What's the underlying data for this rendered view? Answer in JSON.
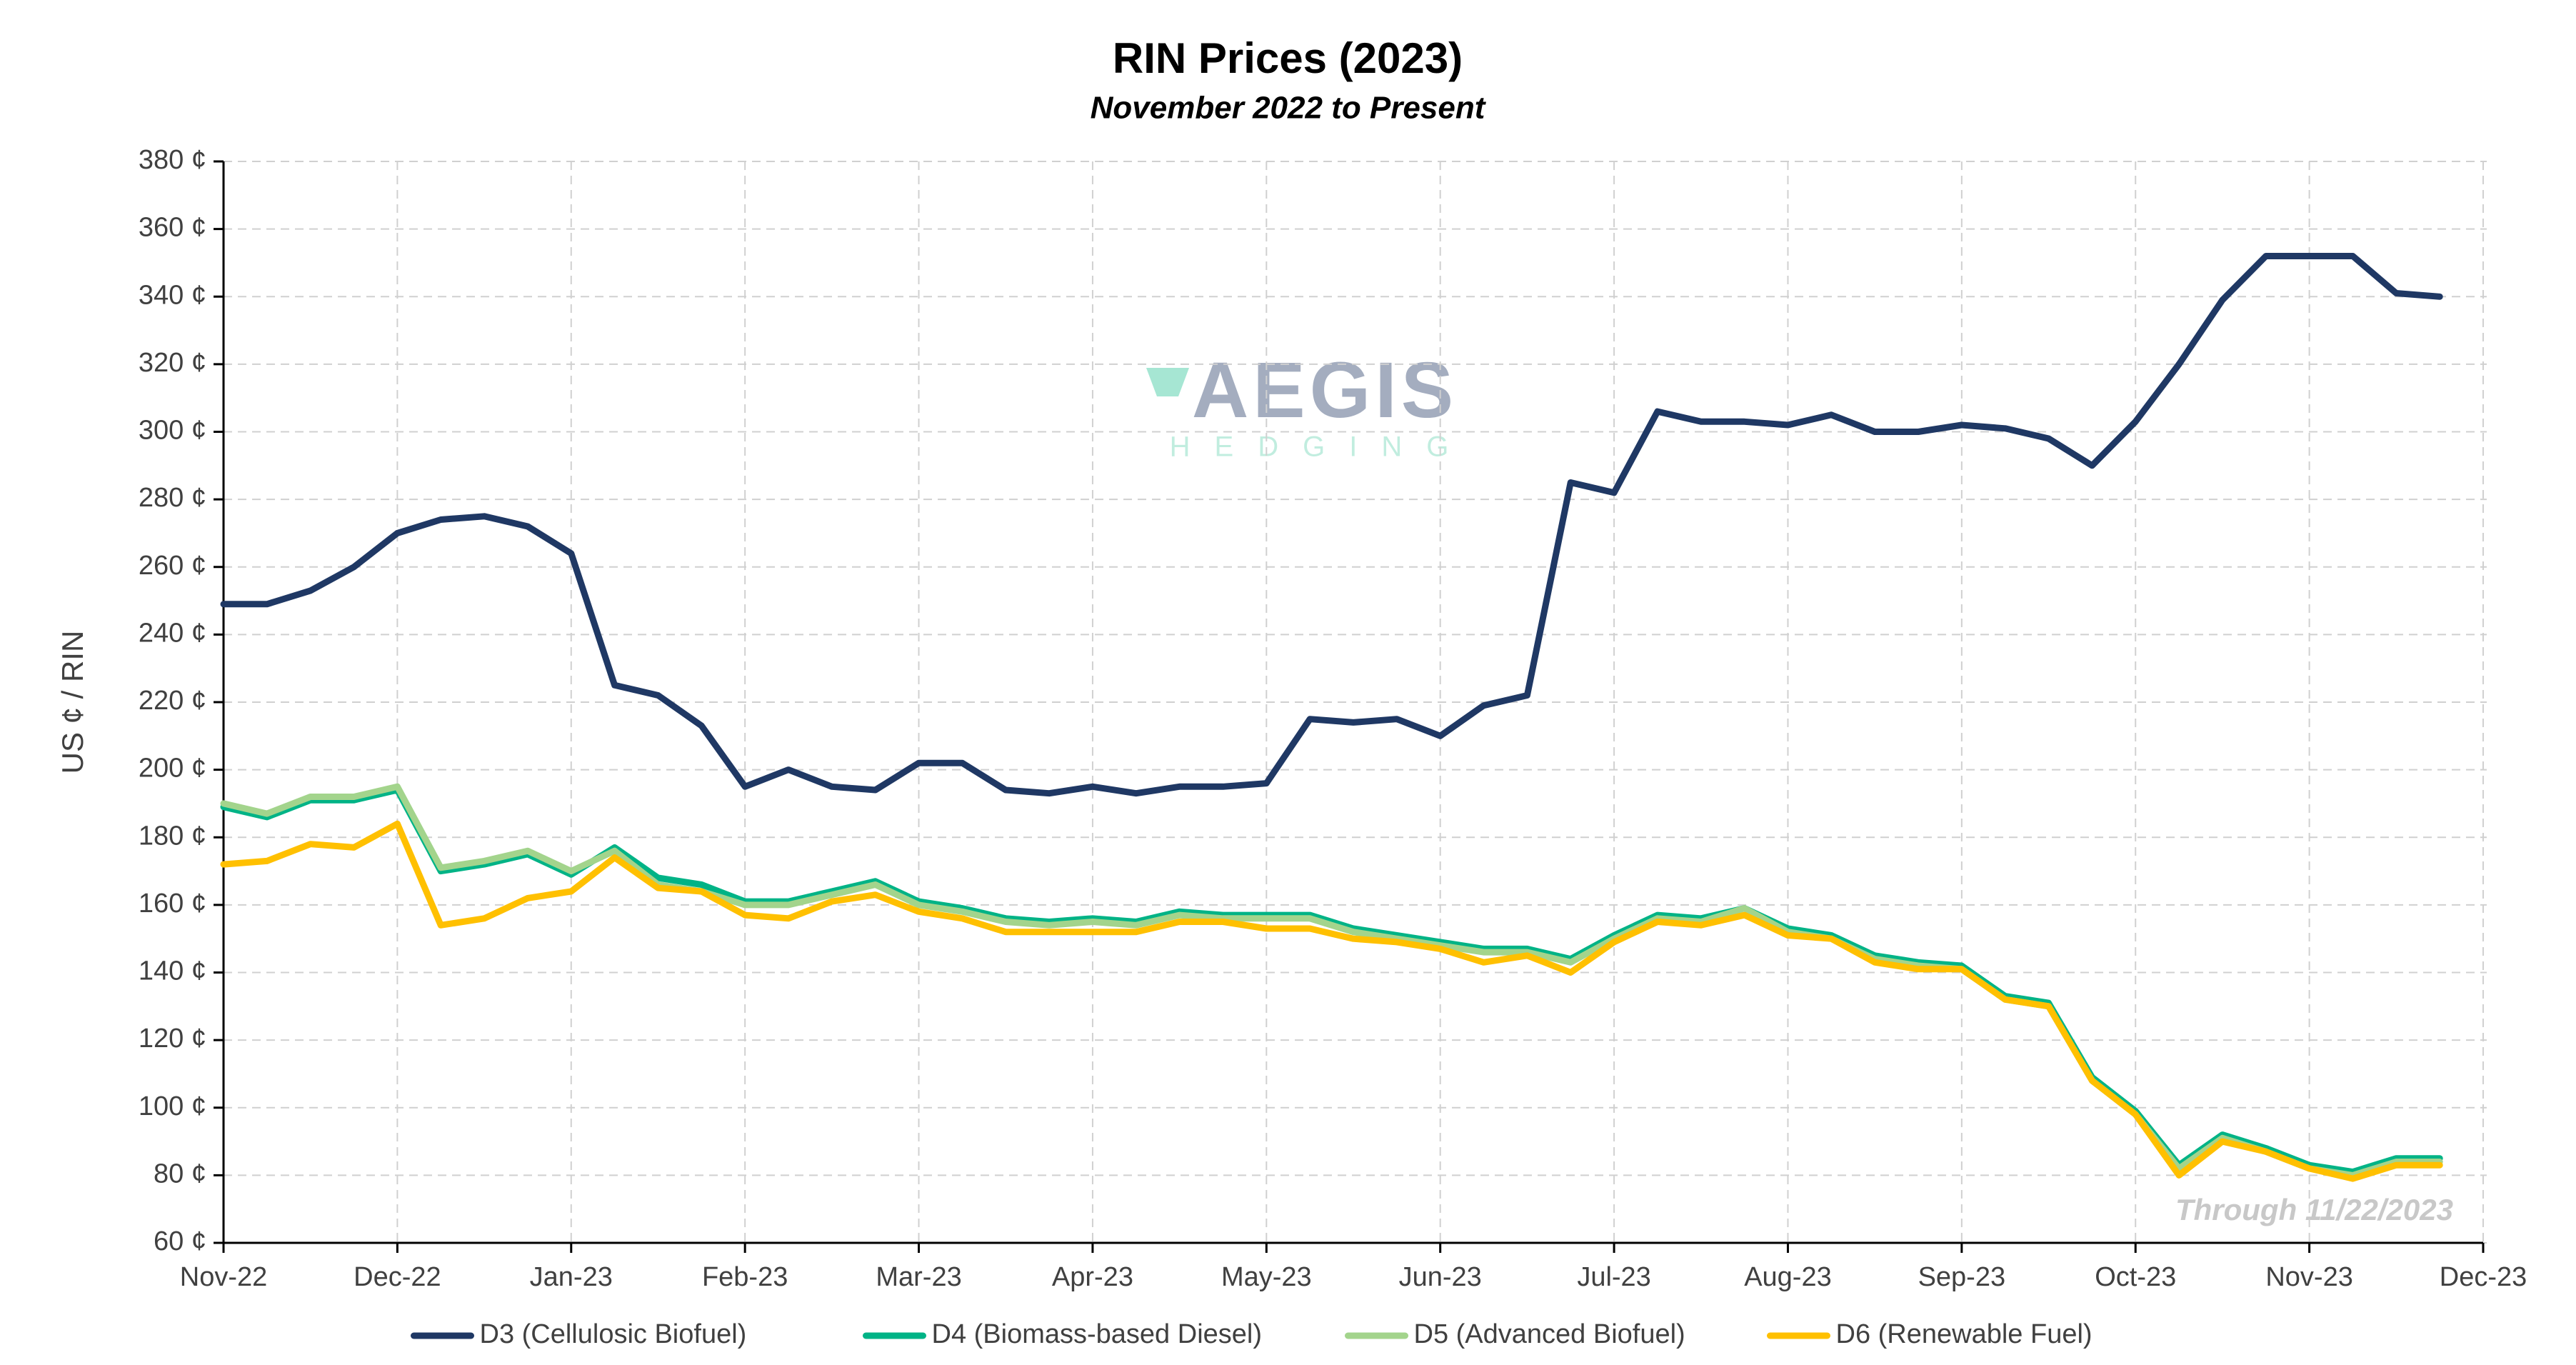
{
  "chart_data": {
    "type": "line",
    "title": "RIN Prices (2023)",
    "subtitle": "November 2022 to Present",
    "y_label": "US ¢ / RIN",
    "annotation": "Through 11/22/2023",
    "logo": {
      "name": "AEGIS",
      "tagline": "HEDGING"
    },
    "categories": [
      "Nov-22",
      null,
      null,
      null,
      "Dec-22",
      null,
      null,
      null,
      "Jan-23",
      null,
      null,
      null,
      "Feb-23",
      null,
      null,
      null,
      "Mar-23",
      null,
      null,
      null,
      "Apr-23",
      null,
      null,
      null,
      "May-23",
      null,
      null,
      null,
      "Jun-23",
      null,
      null,
      null,
      "Jul-23",
      null,
      null,
      null,
      "Aug-23",
      null,
      null,
      null,
      "Sep-23",
      null,
      null,
      null,
      "Oct-23",
      null,
      null,
      null,
      "Nov-23",
      null,
      null,
      null,
      "Dec-23"
    ],
    "series": [
      {
        "name": "D3 (Cellulosic Biofuel)",
        "color": "#1f3864",
        "values": [
          249,
          249,
          253,
          260,
          270,
          274,
          275,
          272,
          264,
          225,
          222,
          213,
          195,
          200,
          195,
          194,
          202,
          202,
          194,
          193,
          195,
          193,
          195,
          195,
          196,
          215,
          214,
          215,
          210,
          219,
          222,
          285,
          282,
          306,
          303,
          303,
          302,
          305,
          300,
          300,
          302,
          301,
          298,
          290,
          303,
          320,
          339,
          352,
          352,
          352,
          341,
          340,
          null
        ]
      },
      {
        "name": "D4 (Biomass-based Diesel)",
        "color": "#00b386",
        "values": [
          189,
          186,
          191,
          191,
          194,
          170,
          172,
          175,
          169,
          177,
          168,
          166,
          161,
          161,
          164,
          167,
          161,
          159,
          156,
          155,
          156,
          155,
          158,
          157,
          157,
          157,
          153,
          151,
          149,
          147,
          147,
          144,
          151,
          157,
          156,
          159,
          153,
          151,
          145,
          143,
          142,
          133,
          131,
          109,
          99,
          83,
          92,
          88,
          83,
          81,
          85,
          85,
          null
        ]
      },
      {
        "name": "D5 (Advanced Biofuel)",
        "color": "#a3d48c",
        "values": [
          190,
          187,
          192,
          192,
          195,
          171,
          173,
          176,
          170,
          176,
          166,
          164,
          160,
          160,
          163,
          166,
          160,
          158,
          155,
          154,
          155,
          154,
          157,
          156,
          156,
          156,
          152,
          150,
          148,
          146,
          146,
          143,
          150,
          156,
          155,
          159,
          152,
          150,
          144,
          142,
          141,
          132,
          130,
          108,
          98,
          82,
          91,
          87,
          82,
          80,
          84,
          84,
          null
        ]
      },
      {
        "name": "D6 (Renewable Fuel)",
        "color": "#ffc000",
        "values": [
          172,
          173,
          178,
          177,
          184,
          154,
          156,
          162,
          164,
          174,
          165,
          164,
          157,
          156,
          161,
          163,
          158,
          156,
          152,
          152,
          152,
          152,
          155,
          155,
          153,
          153,
          150,
          149,
          147,
          143,
          145,
          140,
          149,
          155,
          154,
          157,
          151,
          150,
          143,
          141,
          141,
          132,
          130,
          108,
          98,
          80,
          90,
          87,
          82,
          79,
          83,
          83,
          null
        ]
      }
    ],
    "ylim": [
      60,
      380
    ],
    "yticks": [
      {
        "value": 60,
        "label": "60 ¢"
      },
      {
        "value": 80,
        "label": "80 ¢"
      },
      {
        "value": 100,
        "label": "100 ¢"
      },
      {
        "value": 120,
        "label": "120 ¢"
      },
      {
        "value": 140,
        "label": "140 ¢"
      },
      {
        "value": 160,
        "label": "160 ¢"
      },
      {
        "value": 180,
        "label": "180 ¢"
      },
      {
        "value": 200,
        "label": "200 ¢"
      },
      {
        "value": 220,
        "label": "220 ¢"
      },
      {
        "value": 240,
        "label": "240 ¢"
      },
      {
        "value": 260,
        "label": "260 ¢"
      },
      {
        "value": 280,
        "label": "280 ¢"
      },
      {
        "value": 300,
        "label": "300 ¢"
      },
      {
        "value": 320,
        "label": "320 ¢"
      },
      {
        "value": 340,
        "label": "340 ¢"
      },
      {
        "value": 360,
        "label": "360 ¢"
      },
      {
        "value": 380,
        "label": "380 ¢"
      }
    ],
    "grid": true,
    "legend": "bottom"
  }
}
